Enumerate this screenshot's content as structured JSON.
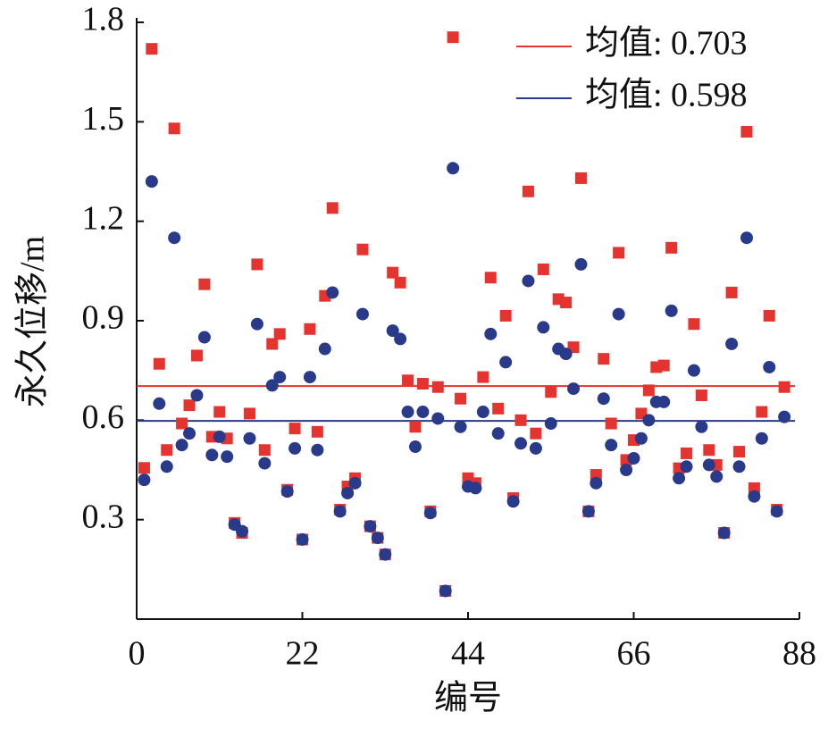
{
  "chart_data": {
    "type": "scatter",
    "xlabel": "编号",
    "ylabel": "永久位移/m",
    "x": [
      1,
      2,
      3,
      4,
      5,
      6,
      7,
      8,
      9,
      10,
      11,
      12,
      13,
      14,
      15,
      16,
      17,
      18,
      19,
      20,
      21,
      22,
      23,
      24,
      25,
      26,
      27,
      28,
      29,
      30,
      31,
      32,
      33,
      34,
      35,
      36,
      37,
      38,
      39,
      40,
      41,
      42,
      43,
      44,
      45,
      46,
      47,
      48,
      49,
      50,
      51,
      52,
      53,
      54,
      55,
      56,
      57,
      58,
      59,
      60,
      61,
      62,
      63,
      64,
      65,
      66,
      67,
      68,
      69,
      70,
      71,
      72,
      73,
      74,
      75,
      76,
      77,
      78,
      79,
      80,
      81,
      82,
      83,
      84,
      85,
      86
    ],
    "series": [
      {
        "color": "#e5332f",
        "marker": "square",
        "values": [
          0.456,
          1.72,
          0.77,
          0.51,
          1.48,
          0.59,
          0.645,
          0.795,
          1.01,
          0.55,
          0.625,
          0.545,
          0.29,
          0.26,
          0.62,
          1.07,
          0.51,
          0.83,
          0.86,
          0.39,
          0.575,
          0.24,
          0.875,
          0.565,
          0.975,
          1.24,
          0.33,
          0.4,
          0.425,
          1.115,
          0.28,
          0.245,
          0.195,
          1.045,
          1.015,
          0.72,
          0.58,
          0.71,
          0.325,
          0.7,
          0.085,
          1.755,
          0.665,
          0.425,
          0.41,
          0.73,
          1.03,
          0.635,
          0.915,
          0.365,
          0.6,
          1.29,
          0.56,
          1.055,
          0.685,
          0.965,
          0.955,
          0.82,
          1.33,
          0.325,
          0.435,
          0.785,
          0.59,
          1.105,
          0.48,
          0.54,
          0.62,
          0.69,
          0.76,
          0.765,
          1.12,
          0.455,
          0.5,
          0.89,
          0.675,
          0.51,
          0.465,
          0.26,
          0.985,
          0.505,
          1.47,
          0.395,
          0.625,
          0.915,
          0.33,
          0.7
        ]
      },
      {
        "color": "#2a3a8a",
        "marker": "circle",
        "values": [
          0.42,
          1.32,
          0.65,
          0.46,
          1.15,
          0.525,
          0.56,
          0.675,
          0.85,
          0.495,
          0.55,
          0.49,
          0.285,
          0.265,
          0.545,
          0.89,
          0.47,
          0.705,
          0.73,
          0.385,
          0.515,
          0.24,
          0.73,
          0.51,
          0.815,
          0.985,
          0.325,
          0.38,
          0.41,
          0.92,
          0.28,
          0.245,
          0.195,
          0.87,
          0.845,
          0.625,
          0.52,
          0.625,
          0.32,
          0.605,
          0.085,
          1.36,
          0.58,
          0.4,
          0.395,
          0.625,
          0.86,
          0.56,
          0.775,
          0.355,
          0.53,
          1.02,
          0.515,
          0.88,
          0.59,
          0.815,
          0.8,
          0.695,
          1.07,
          0.325,
          0.41,
          0.665,
          0.525,
          0.92,
          0.45,
          0.485,
          0.545,
          0.6,
          0.655,
          0.655,
          0.93,
          0.425,
          0.46,
          0.75,
          0.58,
          0.465,
          0.43,
          0.26,
          0.83,
          0.46,
          1.15,
          0.37,
          0.545,
          0.76,
          0.325,
          0.61
        ]
      }
    ],
    "mean_lines": [
      {
        "name": "均值: 0.703",
        "value": 0.703,
        "color": "#e5332f"
      },
      {
        "name": "均值: 0.598",
        "value": 0.598,
        "color": "#2a3a8a"
      }
    ],
    "xlim": [
      0,
      88
    ],
    "xticks": [
      0,
      22,
      44,
      66,
      88
    ],
    "ylim": [
      0,
      1.8
    ],
    "yticks": [
      0.3,
      0.6,
      0.9,
      1.2,
      1.5,
      1.8
    ],
    "legend": "top-right"
  }
}
